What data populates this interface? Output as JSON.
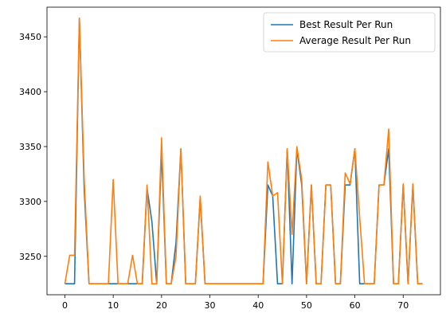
{
  "chart_data": {
    "type": "line",
    "xlim": [
      -3.7,
      77.7
    ],
    "ylim": [
      3215,
      3477
    ],
    "x_ticks": [
      0,
      10,
      20,
      30,
      40,
      50,
      60,
      70
    ],
    "y_ticks": [
      3250,
      3300,
      3350,
      3400,
      3450
    ],
    "grid": false,
    "legend_position": "top-right",
    "series": [
      {
        "name": "Best Result Per Run",
        "color": "#1f77b4",
        "values": [
          3225,
          3225,
          3225,
          3467,
          3310,
          3225,
          3225,
          3225,
          3225,
          3225,
          3225,
          3225,
          3225,
          3225,
          3225,
          3225,
          3225,
          3312,
          3282,
          3225,
          3345,
          3225,
          3225,
          3263,
          3348,
          3225,
          3225,
          3225,
          3303,
          3225,
          3225,
          3225,
          3225,
          3225,
          3225,
          3225,
          3225,
          3225,
          3225,
          3225,
          3225,
          3225,
          3315,
          3305,
          3225,
          3225,
          3348,
          3225,
          3348,
          3315,
          3225,
          3315,
          3225,
          3225,
          3315,
          3315,
          3225,
          3225,
          3315,
          3315,
          3348,
          3225,
          3225,
          3225,
          3225,
          3315,
          3315,
          3348,
          3225,
          3225,
          3315,
          3225,
          3315,
          3225,
          3225
        ]
      },
      {
        "name": "Average Result Per Run",
        "color": "#ff7f0e",
        "values": [
          3225,
          3251,
          3251,
          3467,
          3320,
          3225,
          3225,
          3225,
          3225,
          3225,
          3320,
          3225,
          3225,
          3225,
          3251,
          3225,
          3225,
          3315,
          3225,
          3225,
          3358,
          3225,
          3225,
          3250,
          3348,
          3225,
          3225,
          3225,
          3305,
          3225,
          3225,
          3225,
          3225,
          3225,
          3225,
          3225,
          3225,
          3225,
          3225,
          3225,
          3225,
          3225,
          3336,
          3305,
          3308,
          3225,
          3348,
          3270,
          3350,
          3320,
          3225,
          3315,
          3225,
          3225,
          3315,
          3315,
          3225,
          3225,
          3326,
          3316,
          3348,
          3285,
          3225,
          3225,
          3225,
          3315,
          3315,
          3366,
          3225,
          3225,
          3316,
          3225,
          3316,
          3225,
          3225
        ]
      }
    ]
  }
}
